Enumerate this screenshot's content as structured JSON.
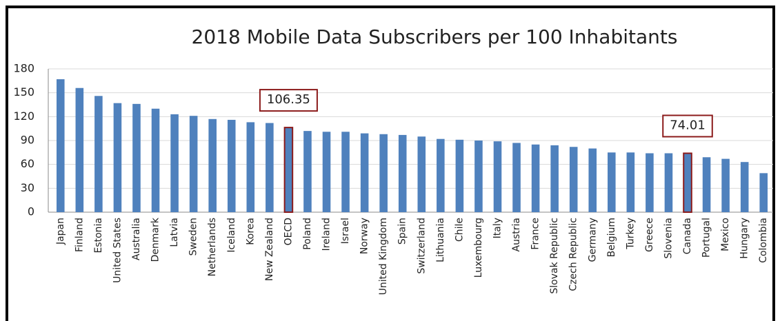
{
  "chart_data": {
    "type": "bar",
    "title": "2018 Mobile Data Subscribers per 100 Inhabitants",
    "categories": [
      "Japan",
      "Finland",
      "Estonia",
      "United States",
      "Australia",
      "Denmark",
      "Latvia",
      "Sweden",
      "Netherlands",
      "Iceland",
      "Korea",
      "New Zealand",
      "OECD",
      "Poland",
      "Ireland",
      "Israel",
      "Norway",
      "United Kingdom",
      "Spain",
      "Switzerland",
      "Lithuania",
      "Chile",
      "Luxembourg",
      "Italy",
      "Austria",
      "France",
      "Slovak Republic",
      "Czech Republic",
      "Germany",
      "Belgium",
      "Turkey",
      "Greece",
      "Slovenia",
      "Canada",
      "Portugal",
      "Mexico",
      "Hungary",
      "Colombia"
    ],
    "values": [
      167,
      156,
      146,
      137,
      136,
      130,
      123,
      121,
      117,
      116,
      113,
      112,
      106.35,
      102,
      101,
      101,
      99,
      98,
      97,
      95,
      92,
      91,
      90,
      89,
      87,
      85,
      84,
      82,
      80,
      75,
      75,
      74,
      74,
      74.01,
      69,
      67,
      63,
      49
    ],
    "value_labels": [
      null,
      null,
      null,
      null,
      null,
      null,
      null,
      null,
      null,
      null,
      null,
      null,
      "106.35",
      null,
      null,
      null,
      null,
      null,
      null,
      null,
      null,
      null,
      null,
      null,
      null,
      null,
      null,
      null,
      null,
      null,
      null,
      null,
      null,
      "74.01",
      null,
      null,
      null,
      null
    ],
    "color": "#4f81bd",
    "highlight_color": "#8b1a1a",
    "ylim": [
      0,
      180
    ],
    "yticks": [
      0,
      30,
      60,
      90,
      120,
      150,
      180
    ],
    "grid": true
  }
}
